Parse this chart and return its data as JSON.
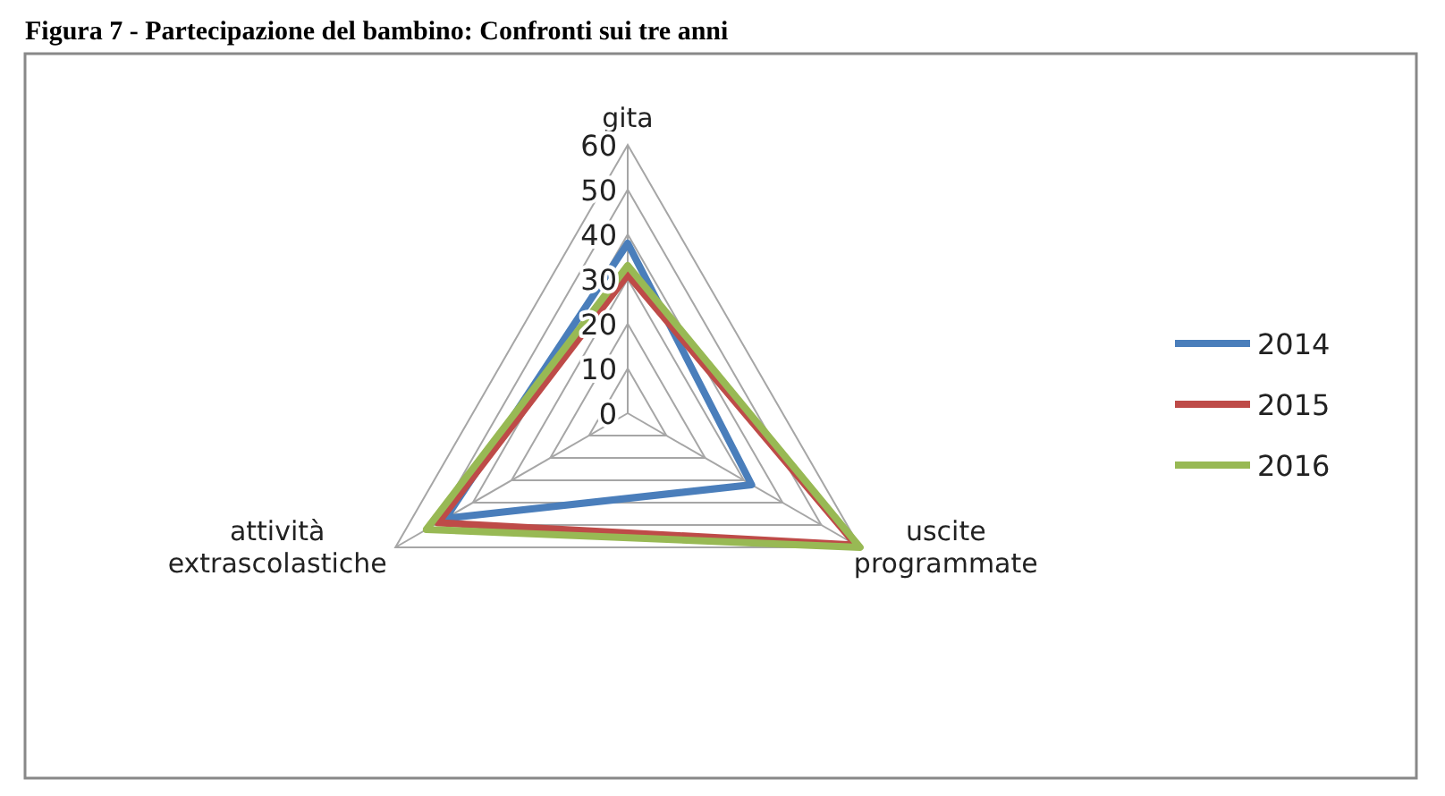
{
  "chart_data": {
    "type": "radar",
    "title": "Figura 7 - Partecipazione del bambino: Confronti sui tre anni",
    "categories": [
      "gita",
      "uscite programmate",
      "attività extrascolastiche"
    ],
    "series": [
      {
        "name": "2014",
        "color": "#4a7ebb",
        "values": [
          38,
          32,
          47
        ]
      },
      {
        "name": "2015",
        "color": "#be4b48",
        "values": [
          31,
          59,
          49
        ]
      },
      {
        "name": "2016",
        "color": "#98b954",
        "values": [
          33,
          60,
          52
        ]
      }
    ],
    "ylim": [
      0,
      60
    ],
    "yticks": [
      0,
      10,
      20,
      30,
      40,
      50,
      60
    ],
    "grid": true,
    "legend": "right",
    "marker": "none",
    "line_style": "solid"
  }
}
